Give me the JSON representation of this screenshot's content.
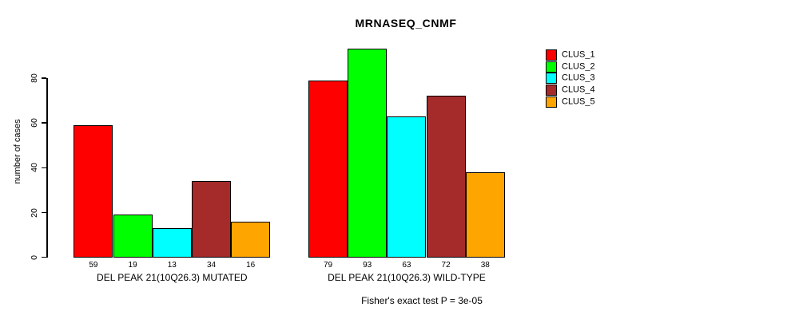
{
  "chart_data": {
    "type": "bar",
    "title": "MRNASEQ_CNMF",
    "ylabel": "number of cases",
    "yticks": [
      0,
      20,
      40,
      60,
      80
    ],
    "ylim": [
      0,
      93
    ],
    "grid": false,
    "legend_position": "top-right",
    "bar_value_labels": true,
    "groups": [
      "DEL PEAK 21(10Q26.3) MUTATED",
      "DEL PEAK 21(10Q26.3) WILD-TYPE"
    ],
    "series": [
      {
        "name": "CLUS_1",
        "color": "#ff0000",
        "values": [
          59,
          79
        ]
      },
      {
        "name": "CLUS_2",
        "color": "#00ff00",
        "values": [
          19,
          93
        ]
      },
      {
        "name": "CLUS_3",
        "color": "#00ffff",
        "values": [
          13,
          63
        ]
      },
      {
        "name": "CLUS_4",
        "color": "#a52a2a",
        "values": [
          34,
          72
        ]
      },
      {
        "name": "CLUS_5",
        "color": "#ffa500",
        "values": [
          16,
          38
        ]
      }
    ],
    "annotation": "Fisher's exact test P = 3e-05"
  },
  "colors": {
    "background": "#ffffff",
    "axis": "#000000",
    "text": "#000000"
  }
}
